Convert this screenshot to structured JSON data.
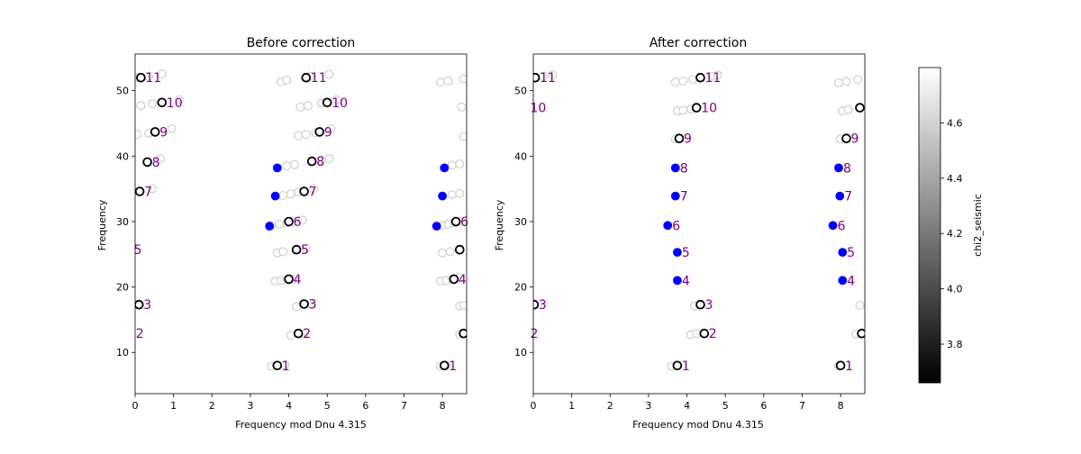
{
  "chart_data": [
    {
      "type": "scatter",
      "title": "Before correction",
      "xlabel": "Frequency mod Dnu 4.315",
      "ylabel": "Frequency",
      "xlim": [
        0,
        8.63
      ],
      "ylim": [
        3.7,
        55.6
      ],
      "xticks": [
        0,
        1,
        2,
        3,
        4,
        5,
        6,
        7,
        8
      ],
      "yticks": [
        10,
        20,
        30,
        40,
        50
      ],
      "grid": false,
      "series": [
        {
          "values": [
            {
              "x": 0.05,
              "y": 52.0
            },
            {
              "x": 0.35,
              "y": 52.2
            },
            {
              "x": 0.7,
              "y": 52.5
            },
            {
              "x": 0.15,
              "y": 47.7
            },
            {
              "x": 0.45,
              "y": 48.0
            },
            {
              "x": 1.15,
              "y": 48.6
            },
            {
              "x": 0.05,
              "y": 43.3
            },
            {
              "x": 0.35,
              "y": 43.5
            },
            {
              "x": 0.95,
              "y": 44.2
            },
            {
              "x": 0.65,
              "y": 39.6
            },
            {
              "x": 0.45,
              "y": 35.0
            },
            {
              "x": 3.8,
              "y": 51.4
            },
            {
              "x": 3.95,
              "y": 51.6
            },
            {
              "x": 4.55,
              "y": 52.2
            },
            {
              "x": 5.05,
              "y": 52.5
            },
            {
              "x": 4.3,
              "y": 47.5
            },
            {
              "x": 4.5,
              "y": 47.7
            },
            {
              "x": 4.85,
              "y": 48.1
            },
            {
              "x": 5.25,
              "y": 48.6
            },
            {
              "x": 4.25,
              "y": 43.1
            },
            {
              "x": 4.45,
              "y": 43.3
            },
            {
              "x": 4.7,
              "y": 43.6
            },
            {
              "x": 5.1,
              "y": 44.2
            },
            {
              "x": 3.95,
              "y": 38.5
            },
            {
              "x": 4.15,
              "y": 38.7
            },
            {
              "x": 4.85,
              "y": 39.4
            },
            {
              "x": 5.05,
              "y": 39.6
            },
            {
              "x": 3.85,
              "y": 34.0
            },
            {
              "x": 4.05,
              "y": 34.2
            },
            {
              "x": 4.25,
              "y": 34.5
            },
            {
              "x": 4.65,
              "y": 35.0
            },
            {
              "x": 3.55,
              "y": 29.4
            },
            {
              "x": 3.75,
              "y": 29.6
            },
            {
              "x": 3.95,
              "y": 29.8
            },
            {
              "x": 4.15,
              "y": 30.0
            },
            {
              "x": 4.35,
              "y": 30.2
            },
            {
              "x": 3.7,
              "y": 25.2
            },
            {
              "x": 3.85,
              "y": 25.4
            },
            {
              "x": 4.45,
              "y": 25.9
            },
            {
              "x": 3.65,
              "y": 20.9
            },
            {
              "x": 3.8,
              "y": 21.0
            },
            {
              "x": 3.95,
              "y": 21.1
            },
            {
              "x": 4.1,
              "y": 21.2
            },
            {
              "x": 4.2,
              "y": 17.0
            },
            {
              "x": 4.6,
              "y": 17.4
            },
            {
              "x": 4.05,
              "y": 12.6
            },
            {
              "x": 4.4,
              "y": 12.8
            },
            {
              "x": 3.55,
              "y": 7.9
            },
            {
              "x": 3.9,
              "y": 8.1
            },
            {
              "x": 7.95,
              "y": 51.3
            },
            {
              "x": 8.15,
              "y": 51.5
            },
            {
              "x": 8.55,
              "y": 51.8
            },
            {
              "x": 8.5,
              "y": 47.5
            },
            {
              "x": 8.55,
              "y": 43.0
            },
            {
              "x": 8.25,
              "y": 38.6
            },
            {
              "x": 8.45,
              "y": 38.8
            },
            {
              "x": 8.25,
              "y": 34.1
            },
            {
              "x": 8.45,
              "y": 34.3
            },
            {
              "x": 8.0,
              "y": 29.4
            },
            {
              "x": 8.15,
              "y": 29.6
            },
            {
              "x": 8.3,
              "y": 29.8
            },
            {
              "x": 8.5,
              "y": 30.0
            },
            {
              "x": 8.0,
              "y": 25.2
            },
            {
              "x": 8.2,
              "y": 25.4
            },
            {
              "x": 8.45,
              "y": 25.8
            },
            {
              "x": 7.95,
              "y": 20.9
            },
            {
              "x": 8.1,
              "y": 21.0
            },
            {
              "x": 8.25,
              "y": 21.2
            },
            {
              "x": 8.45,
              "y": 21.4
            },
            {
              "x": 8.45,
              "y": 17.1
            },
            {
              "x": 8.55,
              "y": 17.2
            },
            {
              "x": 8.45,
              "y": 12.8
            },
            {
              "x": 7.95,
              "y": 7.9
            },
            {
              "x": 8.1,
              "y": 8.0
            }
          ]
        },
        {
          "values": [
            {
              "x": 0.15,
              "y": 52.0
            },
            {
              "x": 0.7,
              "y": 48.2
            },
            {
              "x": 0.52,
              "y": 43.7
            },
            {
              "x": 0.32,
              "y": 39.1
            },
            {
              "x": 0.12,
              "y": 34.6
            },
            {
              "x": 0.1,
              "y": 17.3
            },
            {
              "x": 4.45,
              "y": 52.0
            },
            {
              "x": 5.0,
              "y": 48.2
            },
            {
              "x": 4.8,
              "y": 43.7
            },
            {
              "x": 4.6,
              "y": 39.2
            },
            {
              "x": 4.4,
              "y": 34.6
            },
            {
              "x": 4.0,
              "y": 30.0
            },
            {
              "x": 4.2,
              "y": 25.7
            },
            {
              "x": 4.0,
              "y": 21.2
            },
            {
              "x": 4.4,
              "y": 17.4
            },
            {
              "x": 4.25,
              "y": 12.9
            },
            {
              "x": 3.7,
              "y": 8.0
            },
            {
              "x": 8.35,
              "y": 30.0
            },
            {
              "x": 8.45,
              "y": 25.7
            },
            {
              "x": 8.3,
              "y": 21.2
            },
            {
              "x": 8.55,
              "y": 12.9
            },
            {
              "x": 8.05,
              "y": 8.0
            }
          ]
        },
        {
          "values": [
            {
              "x": 3.7,
              "y": 38.2
            },
            {
              "x": 3.65,
              "y": 33.9
            },
            {
              "x": 3.5,
              "y": 29.3
            },
            {
              "x": 8.05,
              "y": 38.2
            },
            {
              "x": 8.0,
              "y": 33.9
            },
            {
              "x": 7.85,
              "y": 29.3
            }
          ]
        }
      ],
      "annotations": [
        {
          "text": "11",
          "x": 0.15,
          "y": 52.0
        },
        {
          "text": "10",
          "x": 0.7,
          "y": 48.2
        },
        {
          "text": "9",
          "x": 0.52,
          "y": 43.7
        },
        {
          "text": "8",
          "x": 0.32,
          "y": 39.1
        },
        {
          "text": "7",
          "x": 0.12,
          "y": 34.6
        },
        {
          "text": "5",
          "x": -0.15,
          "y": 25.7
        },
        {
          "text": "3",
          "x": 0.1,
          "y": 17.3
        },
        {
          "text": "2",
          "x": -0.1,
          "y": 12.9
        },
        {
          "text": "11",
          "x": 4.45,
          "y": 52.0
        },
        {
          "text": "10",
          "x": 5.0,
          "y": 48.2
        },
        {
          "text": "9",
          "x": 4.8,
          "y": 43.7
        },
        {
          "text": "8",
          "x": 4.6,
          "y": 39.2
        },
        {
          "text": "7",
          "x": 4.4,
          "y": 34.6
        },
        {
          "text": "6",
          "x": 4.0,
          "y": 30.0
        },
        {
          "text": "5",
          "x": 4.2,
          "y": 25.7
        },
        {
          "text": "4",
          "x": 4.0,
          "y": 21.2
        },
        {
          "text": "3",
          "x": 4.4,
          "y": 17.4
        },
        {
          "text": "2",
          "x": 4.25,
          "y": 12.9
        },
        {
          "text": "1",
          "x": 3.7,
          "y": 8.0
        },
        {
          "text": "6",
          "x": 8.35,
          "y": 30.0
        },
        {
          "text": "4",
          "x": 8.3,
          "y": 21.2
        },
        {
          "text": "1",
          "x": 8.05,
          "y": 8.0
        }
      ]
    },
    {
      "type": "scatter",
      "title": "After correction",
      "xlabel": "Frequency mod Dnu 4.315",
      "ylabel": "Frequency",
      "xlim": [
        0,
        8.63
      ],
      "ylim": [
        3.7,
        55.6
      ],
      "xticks": [
        0,
        1,
        2,
        3,
        4,
        5,
        6,
        7,
        8
      ],
      "yticks": [
        10,
        20,
        30,
        40,
        50
      ],
      "grid": false,
      "series": [
        {
          "values": [
            {
              "x": 0.25,
              "y": 52.2
            },
            {
              "x": 0.5,
              "y": 52.4
            },
            {
              "x": 3.7,
              "y": 51.3
            },
            {
              "x": 3.9,
              "y": 51.5
            },
            {
              "x": 4.15,
              "y": 51.7
            },
            {
              "x": 4.65,
              "y": 52.2
            },
            {
              "x": 4.8,
              "y": 52.4
            },
            {
              "x": 3.75,
              "y": 46.9
            },
            {
              "x": 3.9,
              "y": 47.0
            },
            {
              "x": 4.1,
              "y": 47.2
            },
            {
              "x": 3.7,
              "y": 42.6
            },
            {
              "x": 4.2,
              "y": 17.1
            },
            {
              "x": 4.1,
              "y": 12.7
            },
            {
              "x": 4.25,
              "y": 12.9
            },
            {
              "x": 3.6,
              "y": 7.9
            },
            {
              "x": 7.95,
              "y": 51.2
            },
            {
              "x": 8.15,
              "y": 51.4
            },
            {
              "x": 8.45,
              "y": 51.7
            },
            {
              "x": 8.05,
              "y": 46.9
            },
            {
              "x": 8.2,
              "y": 47.1
            },
            {
              "x": 8.0,
              "y": 42.6
            },
            {
              "x": 8.5,
              "y": 17.2
            },
            {
              "x": 8.4,
              "y": 12.8
            },
            {
              "x": 7.95,
              "y": 7.9
            }
          ]
        },
        {
          "values": [
            {
              "x": 0.05,
              "y": 52.0
            },
            {
              "x": 4.35,
              "y": 52.0
            },
            {
              "x": 4.25,
              "y": 47.4
            },
            {
              "x": 3.8,
              "y": 42.7
            },
            {
              "x": 4.35,
              "y": 17.3
            },
            {
              "x": 4.45,
              "y": 12.9
            },
            {
              "x": 3.75,
              "y": 8.0
            },
            {
              "x": 0.02,
              "y": 17.3
            },
            {
              "x": 8.5,
              "y": 47.4
            },
            {
              "x": 8.15,
              "y": 42.7
            },
            {
              "x": 8.55,
              "y": 12.9
            },
            {
              "x": 8.0,
              "y": 8.0
            }
          ]
        },
        {
          "values": [
            {
              "x": 3.7,
              "y": 38.2
            },
            {
              "x": 3.7,
              "y": 33.9
            },
            {
              "x": 3.5,
              "y": 29.4
            },
            {
              "x": 3.75,
              "y": 25.3
            },
            {
              "x": 3.75,
              "y": 21.0
            },
            {
              "x": 7.95,
              "y": 38.2
            },
            {
              "x": 7.98,
              "y": 33.9
            },
            {
              "x": 7.8,
              "y": 29.4
            },
            {
              "x": 8.05,
              "y": 25.3
            },
            {
              "x": 8.05,
              "y": 21.0
            }
          ]
        }
      ],
      "annotations": [
        {
          "text": "11",
          "x": 0.05,
          "y": 52.0
        },
        {
          "text": "10",
          "x": -0.2,
          "y": 47.4
        },
        {
          "text": "3",
          "x": 0.02,
          "y": 17.3
        },
        {
          "text": "2",
          "x": -0.2,
          "y": 12.9
        },
        {
          "text": "11",
          "x": 4.35,
          "y": 52.0
        },
        {
          "text": "10",
          "x": 4.25,
          "y": 47.4
        },
        {
          "text": "9",
          "x": 3.8,
          "y": 42.7
        },
        {
          "text": "8",
          "x": 3.7,
          "y": 38.2
        },
        {
          "text": "7",
          "x": 3.7,
          "y": 33.9
        },
        {
          "text": "6",
          "x": 3.5,
          "y": 29.4
        },
        {
          "text": "5",
          "x": 3.75,
          "y": 25.3
        },
        {
          "text": "4",
          "x": 3.75,
          "y": 21.0
        },
        {
          "text": "3",
          "x": 4.35,
          "y": 17.3
        },
        {
          "text": "2",
          "x": 4.45,
          "y": 12.9
        },
        {
          "text": "1",
          "x": 3.75,
          "y": 8.0
        },
        {
          "text": "9",
          "x": 8.15,
          "y": 42.7
        },
        {
          "text": "8",
          "x": 7.95,
          "y": 38.2
        },
        {
          "text": "7",
          "x": 7.98,
          "y": 33.9
        },
        {
          "text": "6",
          "x": 7.8,
          "y": 29.4
        },
        {
          "text": "5",
          "x": 8.05,
          "y": 25.3
        },
        {
          "text": "4",
          "x": 8.05,
          "y": 21.0
        },
        {
          "text": "1",
          "x": 8.0,
          "y": 8.0
        }
      ]
    }
  ],
  "colorbar": {
    "label": "chi2_seismic",
    "range": [
      3.66,
      4.8
    ],
    "ticks": [
      3.8,
      4.0,
      4.2,
      4.4,
      4.6
    ],
    "colormap": [
      "#000000",
      "#ffffff"
    ]
  },
  "colors": {
    "light_marker": "#d2d2d2",
    "dark_marker": "#000000",
    "highlight": "#0000ff",
    "annotation": "#800080"
  }
}
